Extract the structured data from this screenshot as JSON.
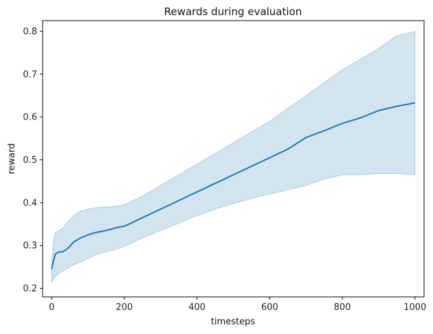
{
  "chart_data": {
    "type": "line",
    "title": "Rewards during evaluation",
    "xlabel": "timesteps",
    "ylabel": "reward",
    "xlim": [
      -25,
      1025
    ],
    "ylim": [
      0.18,
      0.825
    ],
    "xticks": [
      0,
      200,
      400,
      600,
      800,
      1000
    ],
    "yticks": [
      0.2,
      0.3,
      0.4,
      0.5,
      0.6,
      0.7,
      0.8
    ],
    "grid": false,
    "legend": "none",
    "line_color": "#1f77b4",
    "band_color": "#1f77b4",
    "series": [
      {
        "x": [
          0,
          5,
          10,
          20,
          30,
          40,
          50,
          60,
          80,
          100,
          120,
          150,
          180,
          200,
          250,
          300,
          350,
          400,
          450,
          500,
          550,
          600,
          650,
          700,
          750,
          800,
          850,
          900,
          950,
          1000
        ],
        "values": [
          0.245,
          0.265,
          0.28,
          0.285,
          0.285,
          0.29,
          0.298,
          0.308,
          0.318,
          0.325,
          0.33,
          0.335,
          0.342,
          0.345,
          0.365,
          0.385,
          0.405,
          0.425,
          0.445,
          0.465,
          0.485,
          0.505,
          0.525,
          0.552,
          0.568,
          0.585,
          0.598,
          0.615,
          0.625,
          0.633
        ],
        "lower": [
          0.215,
          0.22,
          0.228,
          0.235,
          0.24,
          0.245,
          0.25,
          0.255,
          0.262,
          0.27,
          0.278,
          0.285,
          0.292,
          0.298,
          0.318,
          0.335,
          0.352,
          0.37,
          0.385,
          0.398,
          0.41,
          0.42,
          0.43,
          0.44,
          0.455,
          0.465,
          0.465,
          0.468,
          0.468,
          0.465
        ],
        "upper": [
          0.26,
          0.31,
          0.33,
          0.335,
          0.34,
          0.35,
          0.36,
          0.37,
          0.38,
          0.385,
          0.388,
          0.39,
          0.392,
          0.395,
          0.415,
          0.44,
          0.465,
          0.49,
          0.515,
          0.54,
          0.565,
          0.59,
          0.62,
          0.65,
          0.68,
          0.71,
          0.735,
          0.76,
          0.79,
          0.8
        ]
      }
    ]
  }
}
